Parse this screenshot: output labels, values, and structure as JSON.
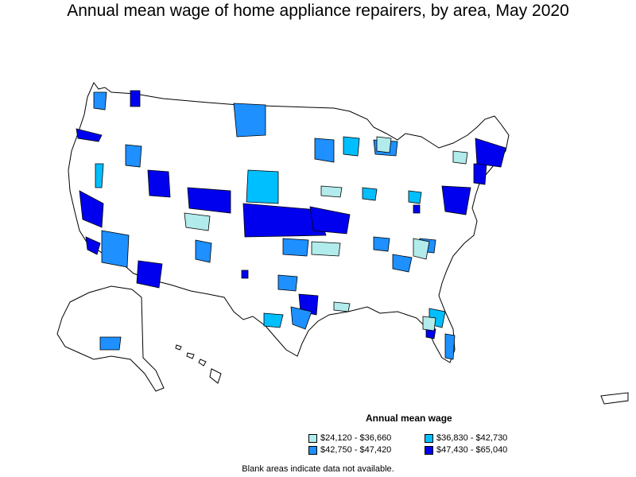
{
  "title": "Annual mean wage of home appliance repairers, by area, May 2020",
  "legend": {
    "title": "Annual mean wage",
    "items": [
      {
        "label": "$24,120 - $36,660",
        "color": "#b2ebeb"
      },
      {
        "label": "$36,830 - $42,730",
        "color": "#00bfff"
      },
      {
        "label": "$42,750 - $47,420",
        "color": "#1e90ff"
      },
      {
        "label": "$47,430 - $65,040",
        "color": "#0000ee"
      }
    ]
  },
  "footnote": "Blank areas indicate data not available.",
  "colors": {
    "no_data": "#ffffff",
    "border": "#000000"
  }
}
